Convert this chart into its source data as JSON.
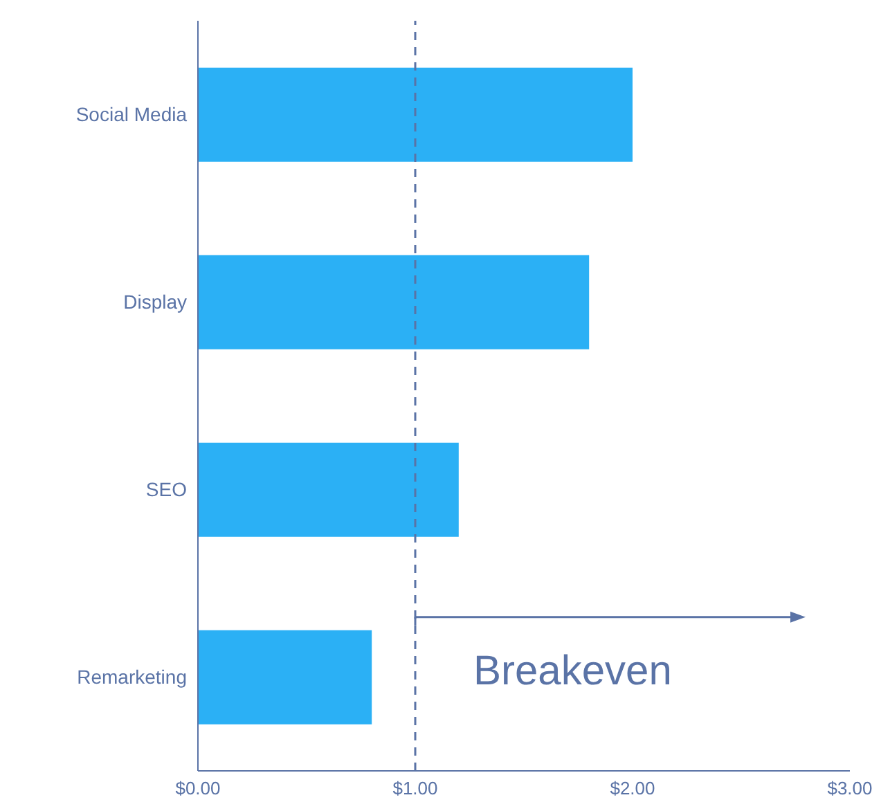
{
  "chart_data": {
    "type": "bar",
    "orientation": "horizontal",
    "categories": [
      "Social Media",
      "Display",
      "SEO",
      "Remarketing"
    ],
    "values": [
      2.0,
      1.8,
      1.2,
      0.8
    ],
    "color": "#2bb0f5",
    "xlim": [
      0,
      3
    ],
    "xticks": [
      {
        "value": 0,
        "label": "$0.00"
      },
      {
        "value": 1,
        "label": "$1.00"
      },
      {
        "value": 2,
        "label": "$2.00"
      },
      {
        "value": 3,
        "label": "$3.00"
      }
    ],
    "ref_lines": [
      {
        "axis": "x",
        "value": 1,
        "label": "Breakeven",
        "line_style": "dashed",
        "color": "#5a73a6"
      }
    ],
    "grid": false,
    "legend": false
  }
}
